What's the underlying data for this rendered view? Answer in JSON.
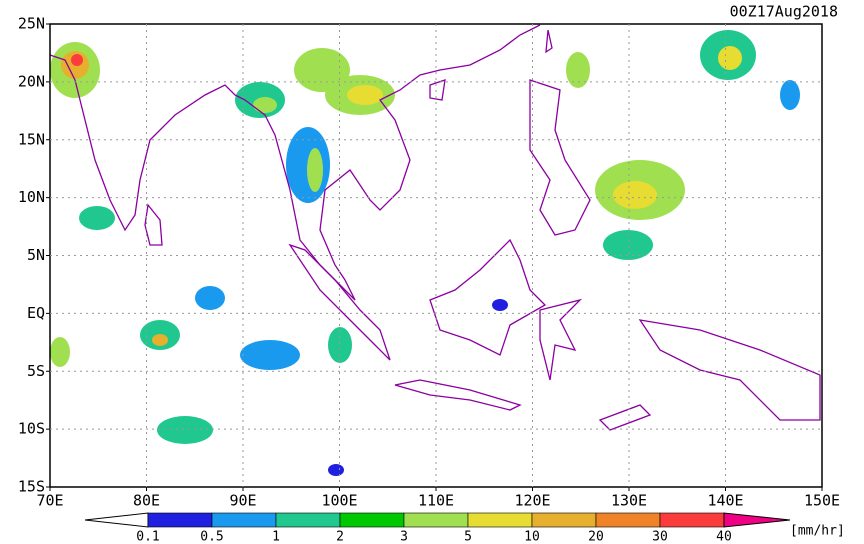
{
  "title": "00Z17Aug2018",
  "axes": {
    "y_labels": [
      "25N",
      "20N",
      "15N",
      "10N",
      "5N",
      "EQ",
      "5S",
      "10S",
      "15S"
    ],
    "x_labels": [
      "70E",
      "80E",
      "90E",
      "100E",
      "110E",
      "120E",
      "130E",
      "140E",
      "150E"
    ]
  },
  "colorbar": {
    "labels": [
      "0.1",
      "0.5",
      "1",
      "2",
      "3",
      "5",
      "10",
      "20",
      "30",
      "40"
    ],
    "unit": "[mm/hr]"
  }
}
